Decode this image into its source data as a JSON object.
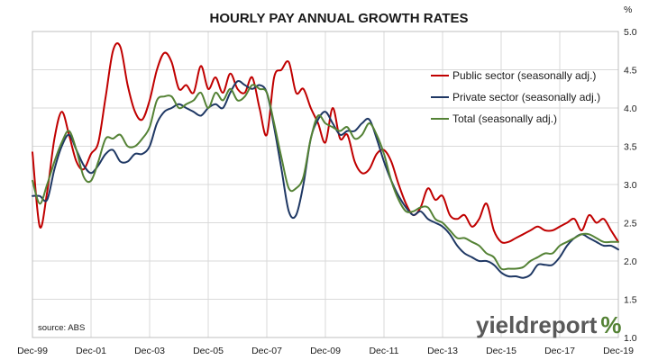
{
  "chart_data": {
    "type": "line",
    "title": "HOURLY PAY ANNUAL GROWTH RATES",
    "y_unit": "%",
    "ylim": [
      1.0,
      5.0
    ],
    "y_ticks": [
      "1.0",
      "1.5",
      "2.0",
      "2.5",
      "3.0",
      "3.5",
      "4.0",
      "4.5",
      "5.0"
    ],
    "y_axis_position": "right",
    "x_ticks": [
      "Dec-99",
      "Dec-01",
      "Dec-03",
      "Dec-05",
      "Dec-07",
      "Dec-09",
      "Dec-11",
      "Dec-13",
      "Dec-15",
      "Dec-17",
      "Dec-19"
    ],
    "xlim": [
      1999.9,
      2019.9
    ],
    "grid": true,
    "legend_position": "top-right",
    "series": [
      {
        "name": "Public sector (seasonally adj.)",
        "color": "#c00000",
        "x": [
          1999.9,
          2000.15,
          2000.4,
          2000.65,
          2000.9,
          2001.15,
          2001.4,
          2001.65,
          2001.9,
          2002.15,
          2002.4,
          2002.65,
          2002.9,
          2003.15,
          2003.4,
          2003.65,
          2003.9,
          2004.15,
          2004.4,
          2004.65,
          2004.9,
          2005.15,
          2005.4,
          2005.65,
          2005.9,
          2006.15,
          2006.4,
          2006.65,
          2006.9,
          2007.15,
          2007.4,
          2007.65,
          2007.9,
          2008.15,
          2008.4,
          2008.65,
          2008.9,
          2009.15,
          2009.4,
          2009.65,
          2009.9,
          2010.15,
          2010.4,
          2010.65,
          2010.9,
          2011.15,
          2011.4,
          2011.65,
          2011.9,
          2012.15,
          2012.4,
          2012.65,
          2012.9,
          2013.15,
          2013.4,
          2013.65,
          2013.9,
          2014.15,
          2014.4,
          2014.65,
          2014.9,
          2015.15,
          2015.4,
          2015.65,
          2015.9,
          2016.15,
          2016.4,
          2016.65,
          2016.9,
          2017.15,
          2017.4,
          2017.65,
          2017.9,
          2018.15,
          2018.4,
          2018.65,
          2018.9,
          2019.15,
          2019.4,
          2019.65,
          2019.9
        ],
        "y": [
          3.42,
          2.45,
          2.9,
          3.6,
          3.95,
          3.65,
          3.3,
          3.2,
          3.4,
          3.55,
          4.15,
          4.75,
          4.8,
          4.3,
          3.95,
          3.85,
          4.1,
          4.5,
          4.72,
          4.6,
          4.25,
          4.3,
          4.2,
          4.55,
          4.25,
          4.4,
          4.2,
          4.45,
          4.25,
          4.2,
          4.4,
          4.0,
          3.65,
          4.4,
          4.5,
          4.6,
          4.2,
          4.25,
          4.0,
          3.8,
          3.55,
          4.0,
          3.6,
          3.65,
          3.3,
          3.15,
          3.2,
          3.4,
          3.45,
          3.3,
          3.0,
          2.75,
          2.6,
          2.7,
          2.95,
          2.8,
          2.85,
          2.6,
          2.55,
          2.6,
          2.45,
          2.55,
          2.75,
          2.4,
          2.25,
          2.25,
          2.3,
          2.35,
          2.4,
          2.45,
          2.4,
          2.4,
          2.45,
          2.5,
          2.55,
          2.4,
          2.6,
          2.5,
          2.55,
          2.4,
          2.25
        ]
      },
      {
        "name": "Private sector (seasonally adj.)",
        "color": "#1f3864",
        "x": [
          1999.9,
          2000.15,
          2000.4,
          2000.65,
          2000.9,
          2001.15,
          2001.4,
          2001.65,
          2001.9,
          2002.15,
          2002.4,
          2002.65,
          2002.9,
          2003.15,
          2003.4,
          2003.65,
          2003.9,
          2004.15,
          2004.4,
          2004.65,
          2004.9,
          2005.15,
          2005.4,
          2005.65,
          2005.9,
          2006.15,
          2006.4,
          2006.65,
          2006.9,
          2007.15,
          2007.4,
          2007.65,
          2007.9,
          2008.15,
          2008.4,
          2008.65,
          2008.9,
          2009.15,
          2009.4,
          2009.65,
          2009.9,
          2010.15,
          2010.4,
          2010.65,
          2010.9,
          2011.15,
          2011.4,
          2011.65,
          2011.9,
          2012.15,
          2012.4,
          2012.65,
          2012.9,
          2013.15,
          2013.4,
          2013.65,
          2013.9,
          2014.15,
          2014.4,
          2014.65,
          2014.9,
          2015.15,
          2015.4,
          2015.65,
          2015.9,
          2016.15,
          2016.4,
          2016.65,
          2016.9,
          2017.15,
          2017.4,
          2017.65,
          2017.9,
          2018.15,
          2018.4,
          2018.65,
          2018.9,
          2019.15,
          2019.4,
          2019.65,
          2019.9
        ],
        "y": [
          2.85,
          2.85,
          2.8,
          3.2,
          3.5,
          3.65,
          3.45,
          3.25,
          3.15,
          3.25,
          3.4,
          3.45,
          3.3,
          3.3,
          3.4,
          3.4,
          3.5,
          3.8,
          3.95,
          4.0,
          4.05,
          4.0,
          3.95,
          3.9,
          4.0,
          4.05,
          4.0,
          4.2,
          4.35,
          4.3,
          4.25,
          4.3,
          4.2,
          3.75,
          3.2,
          2.65,
          2.6,
          3.0,
          3.6,
          3.85,
          3.95,
          3.8,
          3.65,
          3.7,
          3.7,
          3.8,
          3.85,
          3.6,
          3.3,
          3.05,
          2.85,
          2.7,
          2.6,
          2.65,
          2.55,
          2.5,
          2.45,
          2.35,
          2.2,
          2.1,
          2.05,
          2.0,
          2.0,
          1.95,
          1.85,
          1.8,
          1.8,
          1.78,
          1.82,
          1.95,
          1.95,
          1.95,
          2.05,
          2.2,
          2.3,
          2.35,
          2.3,
          2.25,
          2.2,
          2.2,
          2.15
        ]
      },
      {
        "name": "Total (seasonally adj.)",
        "color": "#548235",
        "x": [
          1999.9,
          2000.15,
          2000.4,
          2000.65,
          2000.9,
          2001.15,
          2001.4,
          2001.65,
          2001.9,
          2002.15,
          2002.4,
          2002.65,
          2002.9,
          2003.15,
          2003.4,
          2003.65,
          2003.9,
          2004.15,
          2004.4,
          2004.65,
          2004.9,
          2005.15,
          2005.4,
          2005.65,
          2005.9,
          2006.15,
          2006.4,
          2006.65,
          2006.9,
          2007.15,
          2007.4,
          2007.65,
          2007.9,
          2008.15,
          2008.4,
          2008.65,
          2008.9,
          2009.15,
          2009.4,
          2009.65,
          2009.9,
          2010.15,
          2010.4,
          2010.65,
          2010.9,
          2011.15,
          2011.4,
          2011.65,
          2011.9,
          2012.15,
          2012.4,
          2012.65,
          2012.9,
          2013.15,
          2013.4,
          2013.65,
          2013.9,
          2014.15,
          2014.4,
          2014.65,
          2014.9,
          2015.15,
          2015.4,
          2015.65,
          2015.9,
          2016.15,
          2016.4,
          2016.65,
          2016.9,
          2017.15,
          2017.4,
          2017.65,
          2017.9,
          2018.15,
          2018.4,
          2018.65,
          2018.9,
          2019.15,
          2019.4,
          2019.65,
          2019.9
        ],
        "y": [
          3.05,
          2.75,
          3.0,
          3.3,
          3.55,
          3.7,
          3.45,
          3.1,
          3.05,
          3.3,
          3.6,
          3.6,
          3.65,
          3.5,
          3.5,
          3.6,
          3.75,
          4.1,
          4.15,
          4.15,
          4.0,
          4.05,
          4.1,
          4.2,
          4.0,
          4.2,
          4.1,
          4.25,
          4.1,
          4.15,
          4.3,
          4.25,
          4.2,
          3.8,
          3.35,
          2.95,
          2.95,
          3.1,
          3.6,
          3.9,
          3.8,
          3.75,
          3.7,
          3.75,
          3.6,
          3.65,
          3.8,
          3.65,
          3.4,
          3.05,
          2.8,
          2.65,
          2.65,
          2.7,
          2.7,
          2.55,
          2.5,
          2.4,
          2.3,
          2.3,
          2.25,
          2.2,
          2.1,
          2.05,
          1.9,
          1.9,
          1.9,
          1.92,
          2.0,
          2.05,
          2.1,
          2.1,
          2.2,
          2.25,
          2.3,
          2.35,
          2.35,
          2.3,
          2.25,
          2.25,
          2.25
        ]
      }
    ]
  },
  "source_label": "source: ABS",
  "logo": {
    "text": "yieldreport",
    "mark": "%",
    "text_color": "#595959",
    "mark_color": "#548235"
  }
}
